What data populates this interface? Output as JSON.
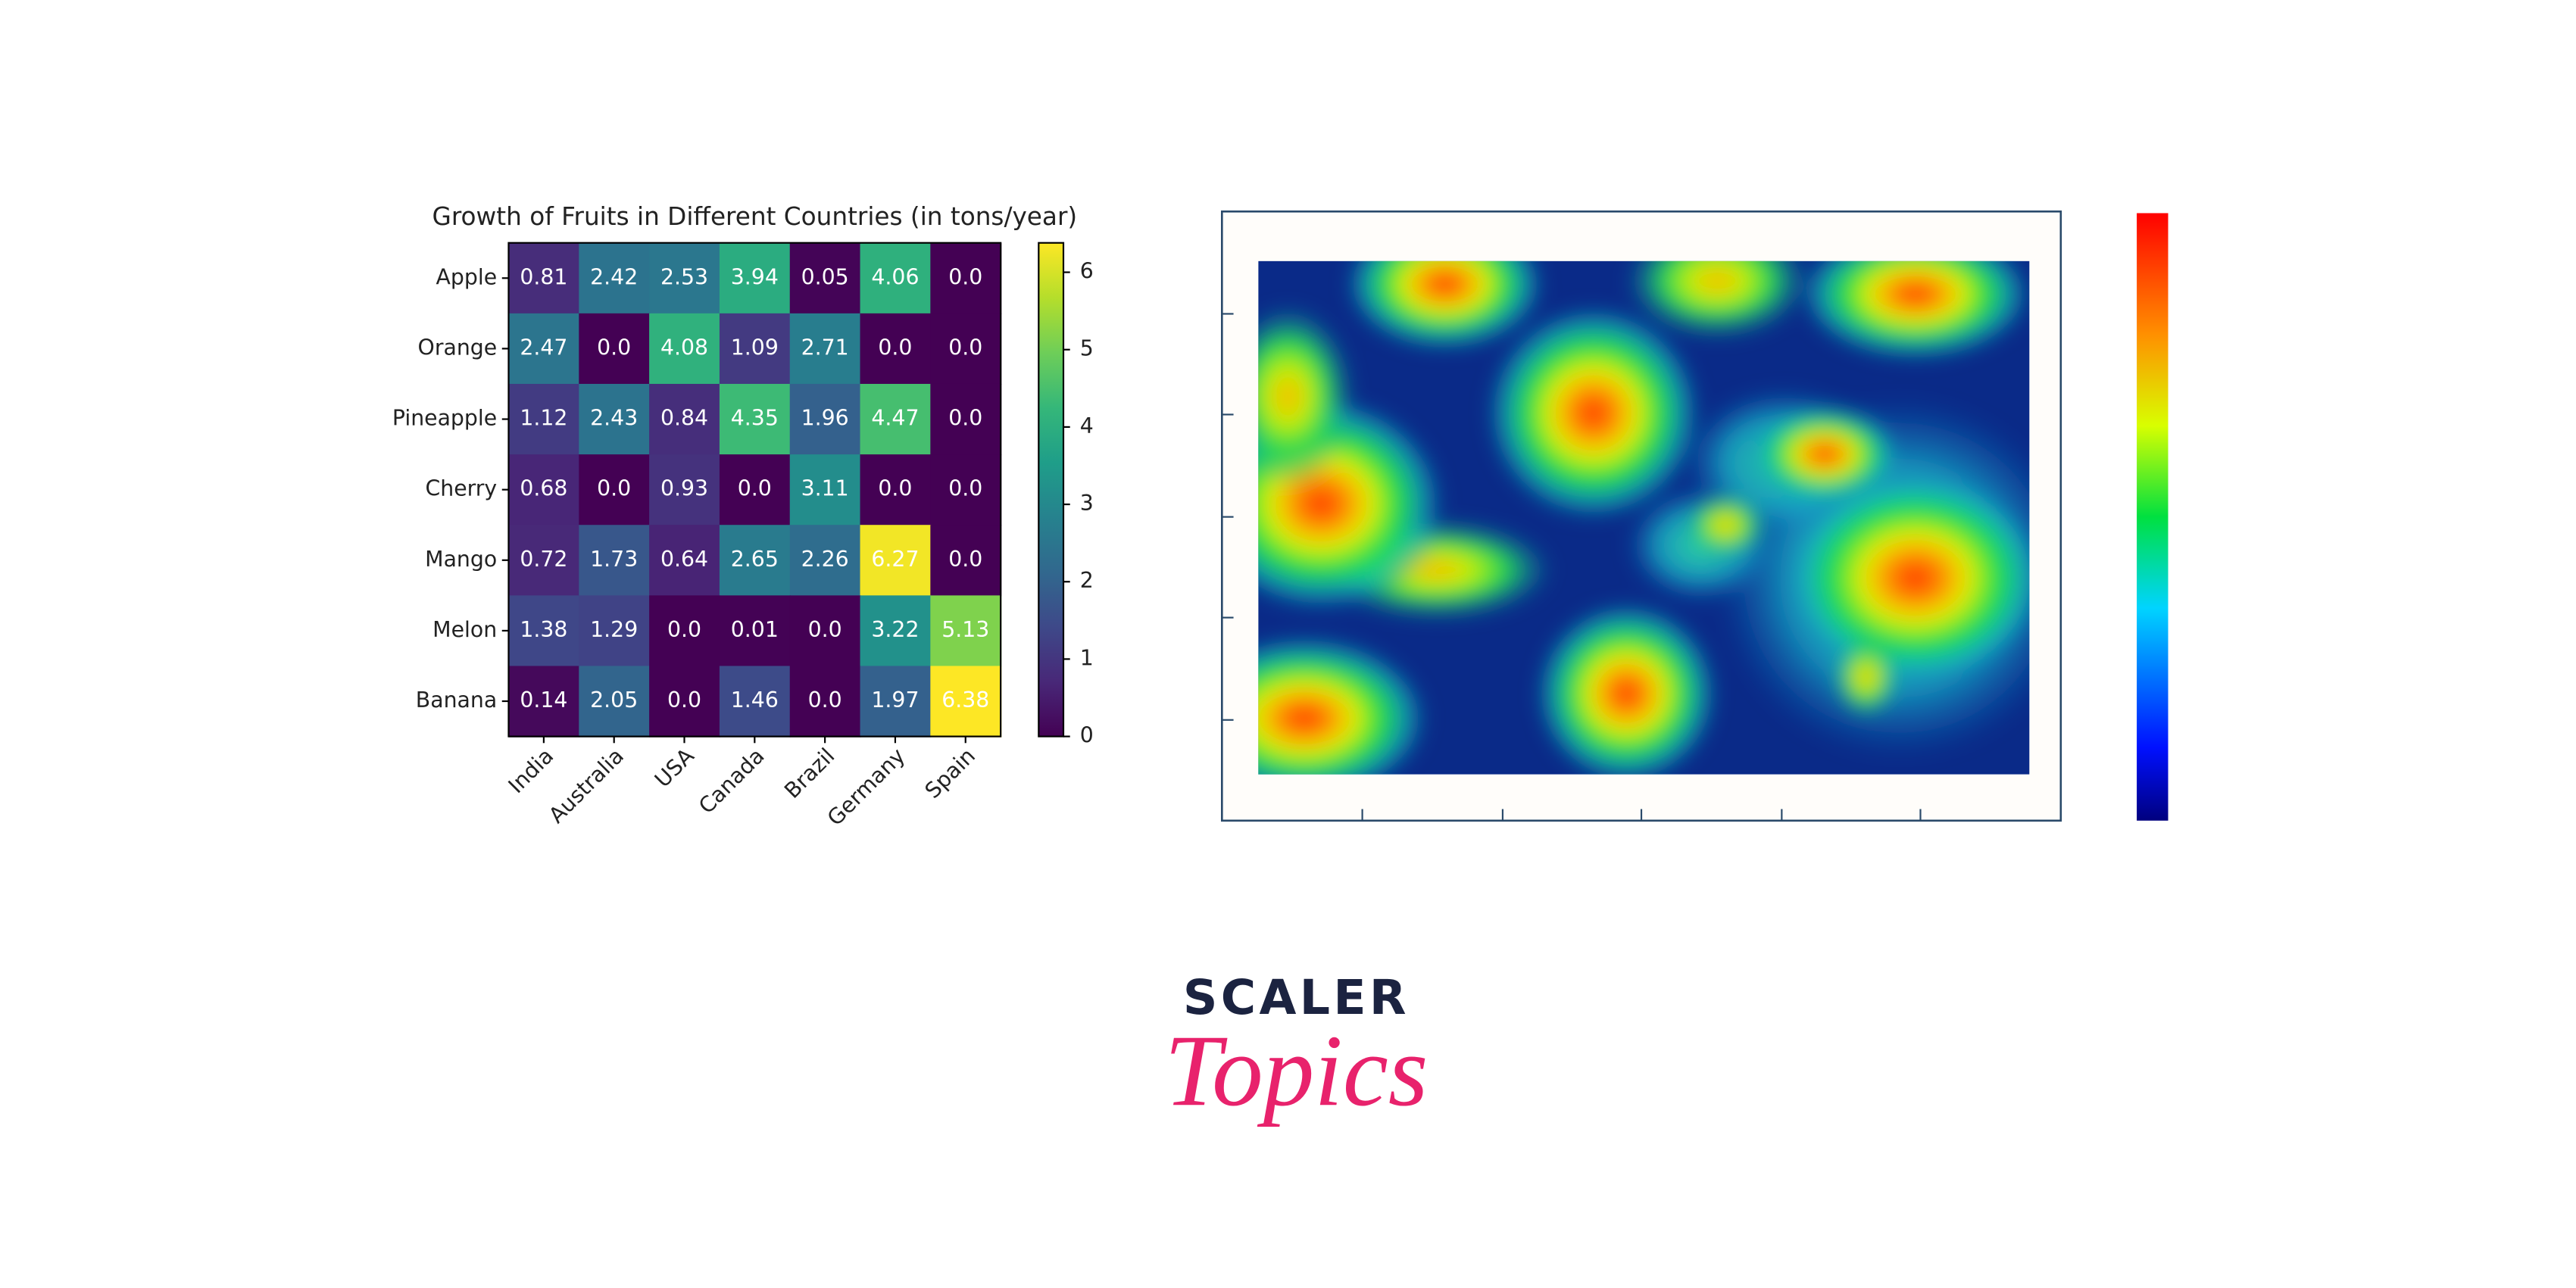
{
  "chart_data": {
    "type": "heatmap",
    "title": "Growth of Fruits in Different Countries (in tons/year)",
    "rows": [
      "Apple",
      "Orange",
      "Pineapple",
      "Cherry",
      "Mango",
      "Melon",
      "Banana"
    ],
    "categories": [
      "India",
      "Australia",
      "USA",
      "Canada",
      "Brazil",
      "Germany",
      "Spain"
    ],
    "values": [
      [
        0.81,
        2.42,
        2.53,
        3.94,
        0.05,
        4.06,
        0.0
      ],
      [
        2.47,
        0.0,
        4.08,
        1.09,
        2.71,
        0.0,
        0.0
      ],
      [
        1.12,
        2.43,
        0.84,
        4.35,
        1.96,
        4.47,
        0.0
      ],
      [
        0.68,
        0.0,
        0.93,
        0.0,
        3.11,
        0.0,
        0.0
      ],
      [
        0.72,
        1.73,
        0.64,
        2.65,
        2.26,
        6.27,
        0.0
      ],
      [
        1.38,
        1.29,
        0.0,
        0.01,
        0.0,
        3.22,
        5.13
      ],
      [
        0.14,
        2.05,
        0.0,
        1.46,
        0.0,
        1.97,
        6.38
      ]
    ],
    "value_labels": [
      [
        "0.81",
        "2.42",
        "2.53",
        "3.94",
        "0.05",
        "4.06",
        "0.0"
      ],
      [
        "2.47",
        "0.0",
        "4.08",
        "1.09",
        "2.71",
        "0.0",
        "0.0"
      ],
      [
        "1.12",
        "2.43",
        "0.84",
        "4.35",
        "1.96",
        "4.47",
        "0.0"
      ],
      [
        "0.68",
        "0.0",
        "0.93",
        "0.0",
        "3.11",
        "0.0",
        "0.0"
      ],
      [
        "0.72",
        "1.73",
        "0.64",
        "2.65",
        "2.26",
        "6.27",
        "0.0"
      ],
      [
        "1.38",
        "1.29",
        "0.0",
        "0.01",
        "0.0",
        "3.22",
        "5.13"
      ],
      [
        "0.14",
        "2.05",
        "0.0",
        "1.46",
        "0.0",
        "1.97",
        "6.38"
      ]
    ],
    "colormap": "viridis",
    "clim": [
      0,
      6.38
    ],
    "cticks": [
      0,
      1,
      2,
      3,
      4,
      5,
      6
    ]
  },
  "logo": {
    "brand": "SCALER",
    "tagline": "Topics"
  }
}
